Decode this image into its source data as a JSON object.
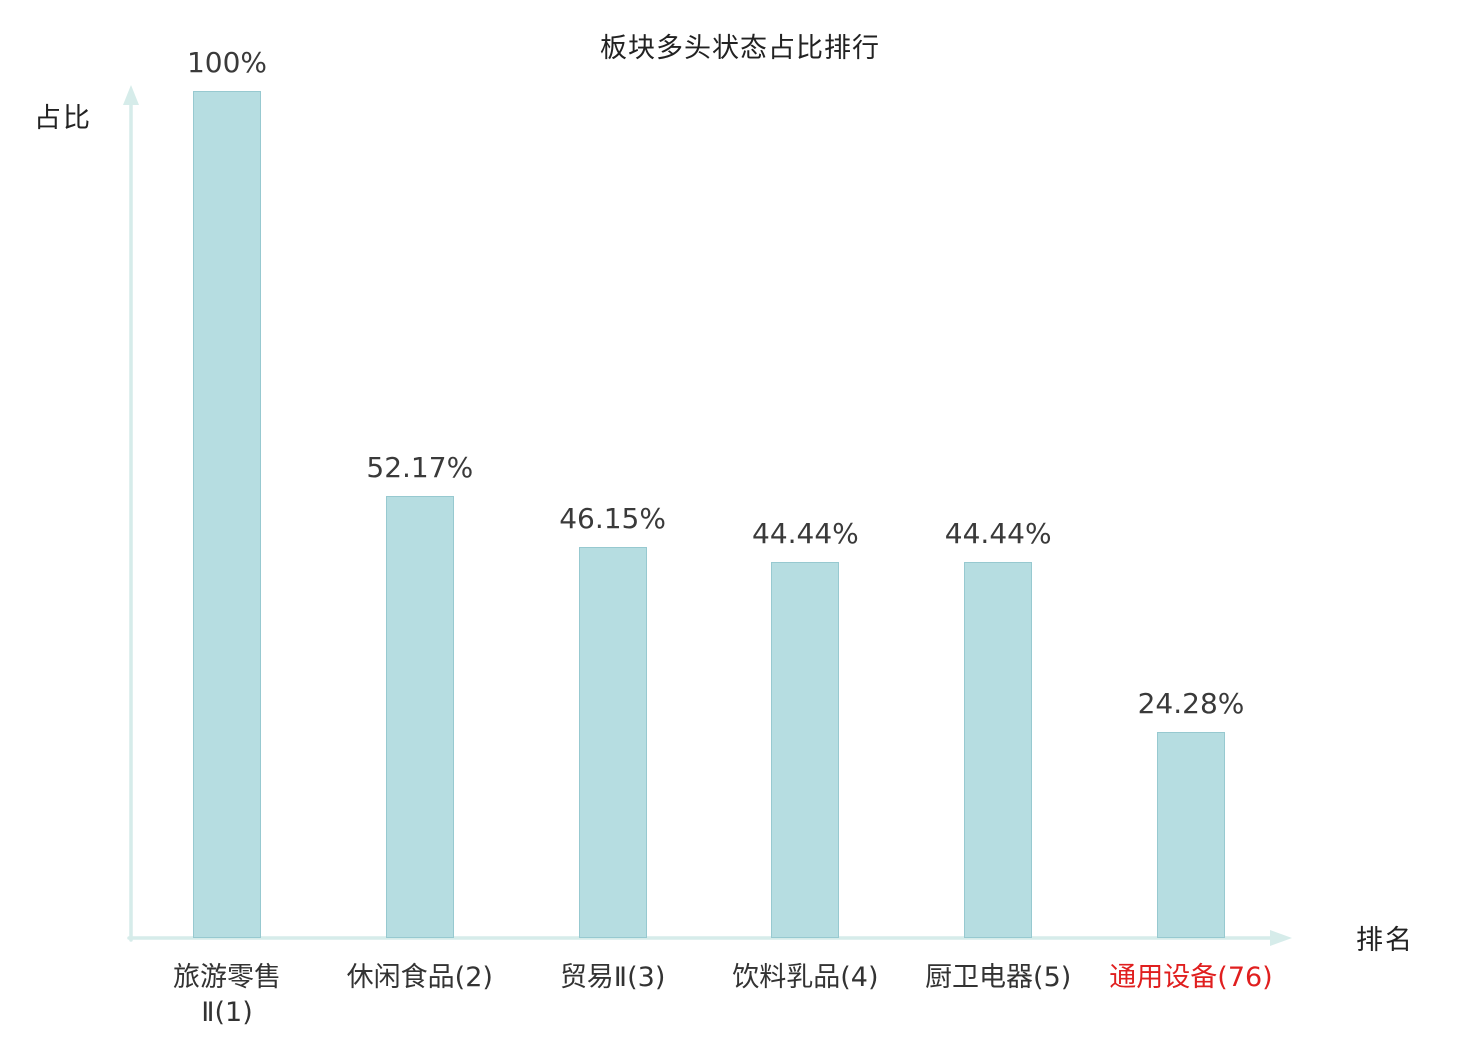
{
  "colors": {
    "bar_fill": "#b6dde1",
    "bar_border": "#97c9d0",
    "axis": "#d6ecea",
    "text": "#333333",
    "highlight": "#e01f1f"
  },
  "chart_data": {
    "type": "bar",
    "title": "板块多头状态占比排行",
    "xlabel": "排名",
    "ylabel": "占比",
    "categories": [
      "旅游零售\nⅡ(1)",
      "休闲食品(2)",
      "贸易Ⅱ(3)",
      "饮料乳品(4)",
      "厨卫电器(5)",
      "通用设备(76)"
    ],
    "values": [
      100,
      52.17,
      46.15,
      44.44,
      44.44,
      24.28
    ],
    "value_labels": [
      "100%",
      "52.17%",
      "46.15%",
      "44.44%",
      "44.44%",
      "24.28%"
    ],
    "highlight_index": 5,
    "ylim": [
      0,
      100
    ],
    "grid": false,
    "legend": "none"
  }
}
